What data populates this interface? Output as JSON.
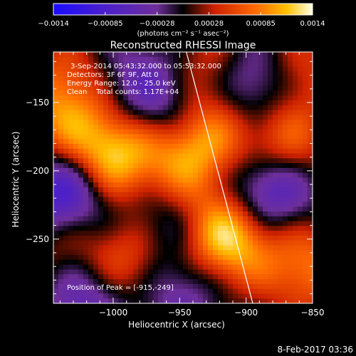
{
  "chart_data": {
    "type": "heatmap",
    "title": "Reconstructed RHESSI Image",
    "xlabel": "Heliocentric X (arcsec)",
    "ylabel": "Heliocentric Y (arcsec)",
    "xlim": [
      -1045,
      -850
    ],
    "ylim": [
      -297,
      -113
    ],
    "xticks": [
      -1000,
      -950,
      -900,
      -850
    ],
    "yticks": [
      -150,
      -200,
      -250
    ],
    "colorbar": {
      "range": [
        -0.0014,
        0.0014
      ],
      "ticks": [
        "-0.0014",
        "-0.00085",
        "-0.00028",
        "0.00028",
        "0.00085",
        "0.0014"
      ],
      "units": "(photons cm⁻² s⁻¹ asec⁻²)"
    },
    "annotations": [
      "3-Sep-2014 05:43:32.000 to 05:53:32.000",
      "Detectors: 3F 6F 9F, Att 0",
      "Energy Range: 12.0 - 25.0 keV",
      "Clean    Total counts: 1.17E+04",
      "Position of Peak = [-915,-249]"
    ],
    "peak": {
      "x": -915,
      "y": -249
    },
    "sources": [
      {
        "x": -1002,
        "y": -190,
        "value": 0.0013
      },
      {
        "x": -915,
        "y": -249,
        "value": 0.0014
      },
      {
        "x": -985,
        "y": -265,
        "value": 0.0009
      },
      {
        "x": -948,
        "y": -195,
        "value": 0.00075
      },
      {
        "x": -930,
        "y": -170,
        "value": 0.0007
      },
      {
        "x": -868,
        "y": -130,
        "value": 0.0009
      },
      {
        "x": -875,
        "y": -185,
        "value": 0.0011
      },
      {
        "x": -855,
        "y": -270,
        "value": 0.0008
      },
      {
        "x": -925,
        "y": -125,
        "value": 0.0006
      },
      {
        "x": -1030,
        "y": -130,
        "value": 0.0006
      },
      {
        "x": -1035,
        "y": -255,
        "value": 0.0005
      },
      {
        "x": -1040,
        "y": -165,
        "value": 0.0007
      },
      {
        "x": -1000,
        "y": -130,
        "value": -0.0004
      },
      {
        "x": -1035,
        "y": -215,
        "value": -0.0012
      },
      {
        "x": -960,
        "y": -150,
        "value": -0.0007
      },
      {
        "x": -890,
        "y": -135,
        "value": -0.0012
      },
      {
        "x": -882,
        "y": -210,
        "value": -0.0013
      },
      {
        "x": -965,
        "y": -240,
        "value": -0.0006
      },
      {
        "x": -950,
        "y": -285,
        "value": -0.0006
      },
      {
        "x": -1020,
        "y": -290,
        "value": -0.0007
      }
    ],
    "limb_line": [
      {
        "x": -945,
        "y": -113
      },
      {
        "x": -895,
        "y": -297
      }
    ],
    "grid": false
  },
  "footer": {
    "date": "8-Feb-2017 03:36"
  }
}
